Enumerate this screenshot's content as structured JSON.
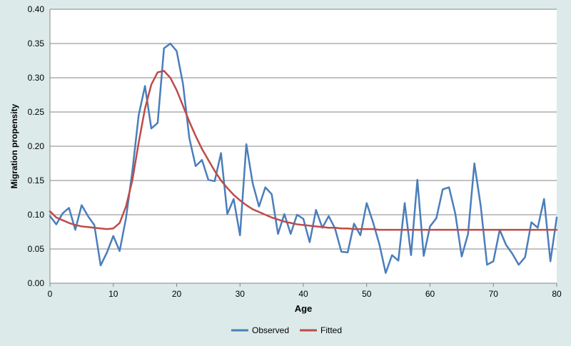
{
  "chart_data": {
    "type": "line",
    "title": "",
    "xlabel": "Age",
    "ylabel": "Migration propensity",
    "xlim": [
      0,
      80
    ],
    "ylim": [
      0,
      0.4
    ],
    "x_ticks": [
      "0",
      "10",
      "20",
      "30",
      "40",
      "50",
      "60",
      "70",
      "80"
    ],
    "y_ticks": [
      "0.00",
      "0.05",
      "0.10",
      "0.15",
      "0.20",
      "0.25",
      "0.30",
      "0.35",
      "0.40"
    ],
    "grid": "horizontal",
    "legend_position": "bottom",
    "series": [
      {
        "name": "Observed",
        "color": "#4a7ebb",
        "x": [
          0,
          1,
          2,
          3,
          4,
          5,
          6,
          7,
          8,
          9,
          10,
          11,
          12,
          13,
          14,
          15,
          16,
          17,
          18,
          19,
          20,
          21,
          22,
          23,
          24,
          25,
          26,
          27,
          28,
          29,
          30,
          31,
          32,
          33,
          34,
          35,
          36,
          37,
          38,
          39,
          40,
          41,
          42,
          43,
          44,
          45,
          46,
          47,
          48,
          49,
          50,
          51,
          52,
          53,
          54,
          55,
          56,
          57,
          58,
          59,
          60,
          61,
          62,
          63,
          64,
          65,
          66,
          67,
          68,
          69,
          70,
          71,
          72,
          73,
          74,
          75,
          76,
          77,
          78,
          79,
          80
        ],
        "values": [
          0.098,
          0.086,
          0.102,
          0.11,
          0.078,
          0.114,
          0.098,
          0.085,
          0.026,
          0.045,
          0.069,
          0.047,
          0.095,
          0.163,
          0.245,
          0.288,
          0.226,
          0.234,
          0.343,
          0.35,
          0.339,
          0.291,
          0.212,
          0.171,
          0.18,
          0.151,
          0.149,
          0.19,
          0.101,
          0.123,
          0.07,
          0.203,
          0.146,
          0.112,
          0.14,
          0.13,
          0.072,
          0.101,
          0.072,
          0.1,
          0.094,
          0.06,
          0.107,
          0.081,
          0.098,
          0.08,
          0.046,
          0.045,
          0.087,
          0.07,
          0.117,
          0.089,
          0.057,
          0.015,
          0.041,
          0.033,
          0.117,
          0.041,
          0.151,
          0.04,
          0.083,
          0.095,
          0.137,
          0.14,
          0.101,
          0.039,
          0.072,
          0.175,
          0.113,
          0.027,
          0.032,
          0.078,
          0.056,
          0.043,
          0.027,
          0.038,
          0.089,
          0.081,
          0.123,
          0.032,
          0.096
        ]
      },
      {
        "name": "Fitted",
        "color": "#be4b48",
        "x": [
          0,
          1,
          2,
          3,
          4,
          5,
          6,
          7,
          8,
          9,
          10,
          11,
          12,
          13,
          14,
          15,
          16,
          17,
          18,
          19,
          20,
          21,
          22,
          23,
          24,
          25,
          26,
          27,
          28,
          29,
          30,
          31,
          32,
          33,
          34,
          35,
          36,
          37,
          38,
          39,
          40,
          41,
          42,
          43,
          44,
          45,
          46,
          47,
          48,
          49,
          50,
          51,
          52,
          53,
          54,
          55,
          56,
          57,
          58,
          59,
          60,
          61,
          62,
          63,
          64,
          65,
          66,
          67,
          68,
          69,
          70,
          71,
          72,
          73,
          74,
          75,
          76,
          77,
          78,
          79,
          80
        ],
        "values": [
          0.105,
          0.096,
          0.092,
          0.088,
          0.085,
          0.083,
          0.082,
          0.081,
          0.08,
          0.079,
          0.08,
          0.088,
          0.112,
          0.15,
          0.205,
          0.255,
          0.29,
          0.308,
          0.31,
          0.3,
          0.282,
          0.259,
          0.236,
          0.215,
          0.196,
          0.18,
          0.164,
          0.15,
          0.139,
          0.129,
          0.121,
          0.114,
          0.108,
          0.104,
          0.1,
          0.096,
          0.093,
          0.09,
          0.088,
          0.086,
          0.085,
          0.084,
          0.083,
          0.082,
          0.081,
          0.081,
          0.08,
          0.08,
          0.079,
          0.079,
          0.079,
          0.079,
          0.078,
          0.078,
          0.078,
          0.078,
          0.078,
          0.078,
          0.078,
          0.078,
          0.078,
          0.078,
          0.078,
          0.078,
          0.078,
          0.078,
          0.078,
          0.078,
          0.078,
          0.078,
          0.078,
          0.078,
          0.078,
          0.078,
          0.078,
          0.078,
          0.078,
          0.078,
          0.078,
          0.078,
          0.078
        ]
      }
    ]
  }
}
